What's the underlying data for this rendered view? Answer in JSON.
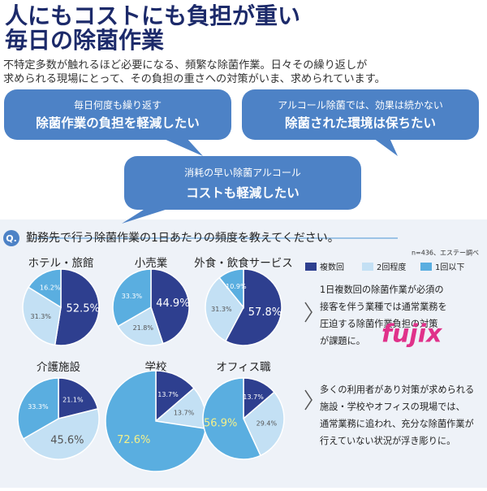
{
  "header": {
    "title_lines": [
      "人にもコストにも負担が重い",
      "毎日の除菌作業"
    ],
    "lead_lines": [
      "不特定多数が触れるほど必要になる、頻繁な除菌作業。日々その繰り返しが",
      "求められる現場にとって、その負担の重さへの対策がいま、求められています。"
    ]
  },
  "bubbles": [
    {
      "small": "毎日何度も繰り返す",
      "large": "除菌作業の負担を軽減したい"
    },
    {
      "small": "アルコール除菌では、効果は続かない",
      "large": "除菌された環境は保ちたい"
    },
    {
      "small": "消耗の早い除菌アルコール",
      "large": "コストも軽減したい"
    }
  ],
  "question": {
    "mark": "Q.",
    "text": "勤務先で行う除菌作業の1日あたりの頻度を教えてください。",
    "note": "n=436、エステー調べ"
  },
  "findings": [
    {
      "lines": [
        "1日複数回の除菌作業が必須の",
        "接客を伴う業種では通常業務を",
        "圧迫する除菌作業負担の対策",
        "が課題に。"
      ]
    },
    {
      "lines": [
        "多くの利用者があり対策が求められる",
        "施設・学校やオフィスの現場では、",
        "通常業務に追われ、充分な除菌作業が",
        "行えていない状況が浮き彫りに。"
      ]
    }
  ],
  "logo": {
    "text": "fujix"
  },
  "chart_data": [
    {
      "type": "pie",
      "title": "ホテル・旅館",
      "categories": [
        "複数回",
        "2回程度",
        "1回以下"
      ],
      "values": [
        52.5,
        31.3,
        16.2
      ],
      "value_labels": [
        "52.5%",
        "31.3%",
        "16.2%"
      ],
      "colors": [
        "#2e3f8f",
        "#c3e0f4",
        "#5aaee0"
      ]
    },
    {
      "type": "pie",
      "title": "小売業",
      "categories": [
        "複数回",
        "2回程度",
        "1回以下"
      ],
      "values": [
        44.9,
        21.8,
        33.3
      ],
      "value_labels": [
        "44.9%",
        "21.8%",
        "33.3%"
      ],
      "colors": [
        "#2e3f8f",
        "#c3e0f4",
        "#5aaee0"
      ]
    },
    {
      "type": "pie",
      "title": "外食・飲食サービス",
      "categories": [
        "複数回",
        "2回程度",
        "1回以下"
      ],
      "values": [
        57.8,
        31.3,
        10.9
      ],
      "value_labels": [
        "57.8%",
        "31.3%",
        "10.9%"
      ],
      "colors": [
        "#2e3f8f",
        "#c3e0f4",
        "#5aaee0"
      ]
    },
    {
      "type": "pie",
      "title": "介護施設",
      "categories": [
        "複数回",
        "2回程度",
        "1回以下"
      ],
      "values": [
        21.1,
        45.6,
        33.3
      ],
      "value_labels": [
        "21.1%",
        "45.6%",
        "33.3%"
      ],
      "colors": [
        "#2e3f8f",
        "#c3e0f4",
        "#5aaee0"
      ]
    },
    {
      "type": "pie",
      "title": "学校",
      "categories": [
        "複数回",
        "2回程度",
        "1回以下"
      ],
      "values": [
        13.7,
        13.7,
        72.6
      ],
      "value_labels": [
        "13.7%",
        "13.7%",
        "72.6%"
      ],
      "colors": [
        "#2e3f8f",
        "#c3e0f4",
        "#5aaee0"
      ]
    },
    {
      "type": "pie",
      "title": "オフィス職",
      "categories": [
        "複数回",
        "2回程度",
        "1回以下"
      ],
      "values": [
        13.7,
        29.4,
        56.9
      ],
      "value_labels": [
        "13.7%",
        "29.4%",
        "56.9%"
      ],
      "colors": [
        "#2e3f8f",
        "#c3e0f4",
        "#5aaee0"
      ]
    }
  ]
}
